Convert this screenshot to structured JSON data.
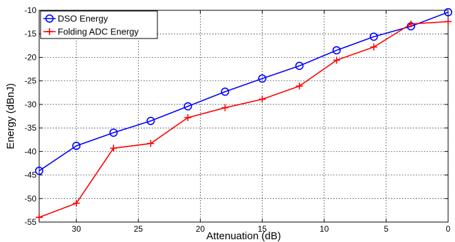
{
  "chart_data": {
    "type": "line",
    "xlabel": "Attenuation (dB)",
    "ylabel": "Energy (dBnJ)",
    "xlim": [
      33,
      0
    ],
    "ylim": [
      -55,
      -10
    ],
    "x_reversed": true,
    "xticks": [
      30,
      25,
      20,
      15,
      10,
      5,
      0
    ],
    "yticks": [
      -10,
      -15,
      -20,
      -25,
      -30,
      -35,
      -40,
      -45,
      -50,
      -55
    ],
    "grid": true,
    "legend_position": "top-left",
    "series": [
      {
        "name": "DSO Energy",
        "color": "#0000ff",
        "marker": "circle",
        "x": [
          33,
          30,
          27,
          24,
          21,
          18,
          15,
          12,
          9,
          6,
          3,
          0
        ],
        "y": [
          -44.1,
          -38.8,
          -36.0,
          -33.5,
          -30.4,
          -27.3,
          -24.5,
          -21.8,
          -18.5,
          -15.6,
          -13.4,
          -10.4
        ]
      },
      {
        "name": "Folding ADC Energy",
        "color": "#ff0000",
        "marker": "plus",
        "x": [
          33,
          30,
          27,
          24,
          21,
          18,
          15,
          12,
          9,
          6,
          3,
          0
        ],
        "y": [
          -54.0,
          -51.0,
          -39.3,
          -38.3,
          -32.8,
          -30.7,
          -28.9,
          -26.1,
          -20.6,
          -17.8,
          -12.9,
          -12.4
        ]
      }
    ]
  }
}
